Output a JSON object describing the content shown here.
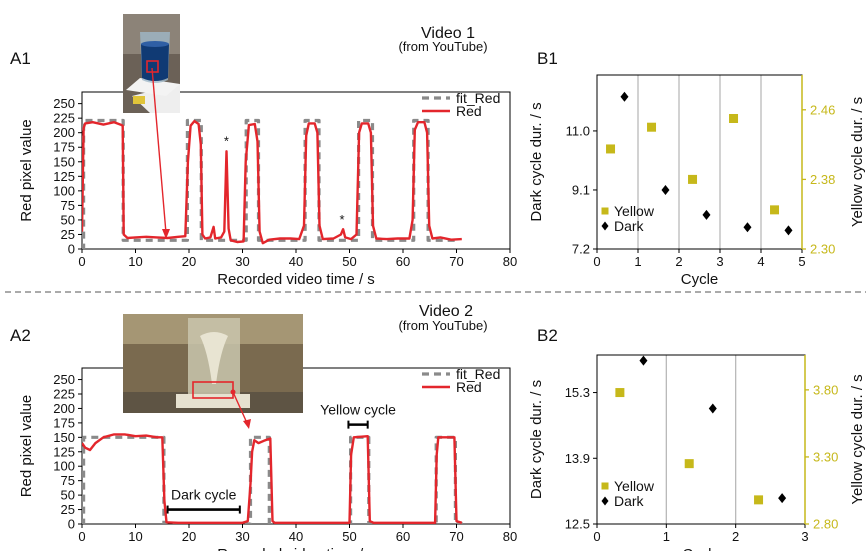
{
  "colors": {
    "red": "#e3262c",
    "fit": "#8a8a8a",
    "yellow": "#c6b81a",
    "dark": "#000000",
    "grid": "#b9b9b9"
  },
  "video1": {
    "title": "Video 1",
    "subtitle": "(from YouTube)"
  },
  "video2": {
    "title": "Video 2",
    "subtitle": "(from YouTube)"
  },
  "chart_data": [
    {
      "id": "A1",
      "type": "line",
      "panel_label": "A1",
      "xlabel": "Recorded video time / s",
      "ylabel": "Red pixel value",
      "xlim": [
        0,
        80
      ],
      "ylim": [
        0,
        270
      ],
      "xticks": [
        0,
        10,
        20,
        30,
        40,
        50,
        60,
        70,
        80
      ],
      "yticks": [
        0,
        25,
        50,
        75,
        100,
        125,
        150,
        175,
        200,
        225,
        250
      ],
      "legend_position": "top-right",
      "series": [
        {
          "name": "fit_Red",
          "style": "dashed",
          "color": "#8a8a8a",
          "points": [
            [
              0,
              0
            ],
            [
              0.3,
              0
            ],
            [
              0.3,
              221
            ],
            [
              7.7,
              221
            ],
            [
              7.7,
              15
            ],
            [
              19.7,
              15
            ],
            [
              19.7,
              221
            ],
            [
              22.3,
              221
            ],
            [
              22.3,
              15
            ],
            [
              30.7,
              15
            ],
            [
              30.7,
              221
            ],
            [
              33,
              221
            ],
            [
              33,
              15
            ],
            [
              41.7,
              15
            ],
            [
              41.7,
              221
            ],
            [
              44.3,
              221
            ],
            [
              44.3,
              15
            ],
            [
              51.7,
              15
            ],
            [
              51.7,
              221
            ],
            [
              54.3,
              221
            ],
            [
              54.3,
              15
            ],
            [
              62,
              15
            ],
            [
              62,
              221
            ],
            [
              64.7,
              221
            ],
            [
              64.7,
              15
            ],
            [
              70.5,
              15
            ]
          ]
        },
        {
          "name": "Red",
          "style": "solid",
          "color": "#e3262c",
          "points": [
            [
              0,
              30
            ],
            [
              0.3,
              208
            ],
            [
              0.6,
              216
            ],
            [
              2,
              218
            ],
            [
              4,
              214
            ],
            [
              6,
              218
            ],
            [
              7.2,
              214
            ],
            [
              7.6,
              212
            ],
            [
              7.8,
              25
            ],
            [
              8.5,
              19
            ],
            [
              10,
              20
            ],
            [
              12,
              21
            ],
            [
              14,
              20
            ],
            [
              16,
              19
            ],
            [
              18,
              21
            ],
            [
              19.3,
              22
            ],
            [
              19.8,
              150
            ],
            [
              20.3,
              212
            ],
            [
              21,
              220
            ],
            [
              21.8,
              215
            ],
            [
              22.2,
              180
            ],
            [
              22.5,
              25
            ],
            [
              23,
              18
            ],
            [
              24,
              20
            ],
            [
              24.6,
              38
            ],
            [
              24.9,
              18
            ],
            [
              26,
              20
            ],
            [
              26.6,
              30
            ],
            [
              27,
              168
            ],
            [
              27.4,
              35
            ],
            [
              27.8,
              15
            ],
            [
              29,
              12
            ],
            [
              30.2,
              13
            ],
            [
              30.6,
              150
            ],
            [
              31.2,
              213
            ],
            [
              32.3,
              215
            ],
            [
              32.8,
              185
            ],
            [
              33.2,
              30
            ],
            [
              33.8,
              10
            ],
            [
              35,
              16
            ],
            [
              37,
              18
            ],
            [
              39,
              18
            ],
            [
              40.6,
              17
            ],
            [
              41.5,
              40
            ],
            [
              41.9,
              195
            ],
            [
              42.4,
              216
            ],
            [
              43.5,
              216
            ],
            [
              44,
              200
            ],
            [
              44.4,
              40
            ],
            [
              45,
              17
            ],
            [
              47,
              18
            ],
            [
              48.4,
              25
            ],
            [
              48.8,
              34
            ],
            [
              49.2,
              20
            ],
            [
              50.3,
              17
            ],
            [
              51.3,
              25
            ],
            [
              51.8,
              200
            ],
            [
              52.3,
              216
            ],
            [
              53.5,
              216
            ],
            [
              54,
              200
            ],
            [
              54.4,
              40
            ],
            [
              55,
              18
            ],
            [
              57,
              17
            ],
            [
              59,
              18
            ],
            [
              61.2,
              18
            ],
            [
              61.8,
              50
            ],
            [
              62.2,
              205
            ],
            [
              62.8,
              218
            ],
            [
              64,
              218
            ],
            [
              64.5,
              200
            ],
            [
              64.9,
              40
            ],
            [
              65.5,
              18
            ],
            [
              67,
              20
            ],
            [
              69,
              16
            ],
            [
              71,
              17
            ]
          ]
        }
      ],
      "annotations": [
        {
          "text": "*",
          "x": 27,
          "y": 185
        },
        {
          "text": "*",
          "x": 48.6,
          "y": 50
        }
      ]
    },
    {
      "id": "B1",
      "type": "scatter",
      "panel_label": "B1",
      "xlabel": "Cycle",
      "ylabel": "Dark cycle dur. / s",
      "ylabel_right": "Yellow cycle dur. / s",
      "xlim": [
        0,
        5
      ],
      "ylim": [
        7.2,
        12.8
      ],
      "ylim_right": [
        2.3,
        2.5
      ],
      "xticks": [
        0,
        1,
        2,
        3,
        4,
        5
      ],
      "yticks": [
        "7.2",
        "9.1",
        "11.0"
      ],
      "yticks_right": [
        "2.30",
        "2.38",
        "2.46"
      ],
      "grid": "vertical",
      "legend_position": "bottom-left",
      "series": [
        {
          "name": "Yellow",
          "marker": "square",
          "color": "#c6b81a",
          "axis": "right",
          "x": [
            0.33,
            1.33,
            2.33,
            3.33,
            4.33
          ],
          "y": [
            2.415,
            2.44,
            2.38,
            2.45,
            2.345
          ]
        },
        {
          "name": "Dark",
          "marker": "diamond",
          "color": "#000000",
          "axis": "left",
          "x": [
            0.67,
            1.67,
            2.67,
            3.67,
            4.67
          ],
          "y": [
            12.1,
            9.1,
            8.3,
            7.9,
            7.8
          ]
        }
      ]
    },
    {
      "id": "A2",
      "type": "line",
      "panel_label": "A2",
      "xlabel": "Recorded video time / s",
      "ylabel": "Red pixel value",
      "xlim": [
        0,
        80
      ],
      "ylim": [
        0,
        270
      ],
      "xticks": [
        0,
        10,
        20,
        30,
        40,
        50,
        60,
        70,
        80
      ],
      "yticks": [
        0,
        25,
        50,
        75,
        100,
        125,
        150,
        175,
        200,
        225,
        250
      ],
      "legend_position": "top-right",
      "series": [
        {
          "name": "fit_Red",
          "style": "dashed",
          "color": "#8a8a8a",
          "points": [
            [
              0,
              0
            ],
            [
              0.3,
              0
            ],
            [
              0.3,
              150
            ],
            [
              15.3,
              150
            ],
            [
              15.3,
              0
            ],
            [
              31.5,
              0
            ],
            [
              31.5,
              150
            ],
            [
              35,
              150
            ],
            [
              35,
              0
            ],
            [
              50.2,
              0
            ],
            [
              50.2,
              150
            ],
            [
              53.6,
              150
            ],
            [
              53.6,
              0
            ],
            [
              66.2,
              0
            ],
            [
              66.2,
              150
            ],
            [
              69.8,
              150
            ],
            [
              69.8,
              0
            ],
            [
              71.2,
              0
            ]
          ]
        },
        {
          "name": "Red",
          "style": "solid",
          "color": "#e3262c",
          "points": [
            [
              0,
              140
            ],
            [
              0.6,
              132
            ],
            [
              1.5,
              128
            ],
            [
              2.5,
              140
            ],
            [
              4,
              150
            ],
            [
              6,
              155
            ],
            [
              8,
              155
            ],
            [
              10,
              152
            ],
            [
              12,
              153
            ],
            [
              14,
              150
            ],
            [
              15,
              150
            ],
            [
              15.4,
              40
            ],
            [
              15.8,
              3
            ],
            [
              18,
              2
            ],
            [
              22,
              2
            ],
            [
              26,
              2
            ],
            [
              30,
              2
            ],
            [
              31,
              5
            ],
            [
              31.5,
              70
            ],
            [
              31.8,
              125
            ],
            [
              32.2,
              145
            ],
            [
              33,
              140
            ],
            [
              34,
              144
            ],
            [
              35.2,
              148
            ],
            [
              35.6,
              5
            ],
            [
              36,
              2
            ],
            [
              40,
              2
            ],
            [
              45,
              2
            ],
            [
              50,
              2
            ],
            [
              50.3,
              120
            ],
            [
              50.8,
              150
            ],
            [
              53.4,
              152
            ],
            [
              53.8,
              5
            ],
            [
              54.5,
              2
            ],
            [
              60,
              2
            ],
            [
              66,
              2
            ],
            [
              66.3,
              120
            ],
            [
              66.6,
              150
            ],
            [
              69.6,
              150
            ],
            [
              70,
              5
            ],
            [
              71,
              2
            ]
          ]
        }
      ],
      "annotations": [
        {
          "text": "Dark cycle",
          "x1": 16,
          "x2": 29.5,
          "y": 25
        },
        {
          "text": "Yellow cycle",
          "x1": 49.8,
          "x2": 53.4,
          "y": 172
        }
      ]
    },
    {
      "id": "B2",
      "type": "scatter",
      "panel_label": "B2",
      "xlabel": "Cycle",
      "ylabel": "Dark cycle dur. / s",
      "ylabel_right": "Yellow cycle dur. / s",
      "xlim": [
        0,
        3
      ],
      "ylim": [
        12.5,
        16.1
      ],
      "ylim_right": [
        2.8,
        4.06
      ],
      "xticks": [
        0,
        1,
        2,
        3
      ],
      "yticks": [
        "12.5",
        "13.9",
        "15.3"
      ],
      "yticks_right": [
        "2.80",
        "3.30",
        "3.80"
      ],
      "grid": "vertical",
      "legend_position": "bottom-left",
      "series": [
        {
          "name": "Yellow",
          "marker": "square",
          "color": "#c6b81a",
          "axis": "right",
          "x": [
            0.33,
            1.33,
            2.33
          ],
          "y": [
            3.78,
            3.25,
            2.98
          ]
        },
        {
          "name": "Dark",
          "marker": "diamond",
          "color": "#000000",
          "axis": "left",
          "x": [
            0.67,
            1.67,
            2.67
          ],
          "y": [
            15.98,
            14.96,
            13.05
          ]
        }
      ]
    }
  ]
}
